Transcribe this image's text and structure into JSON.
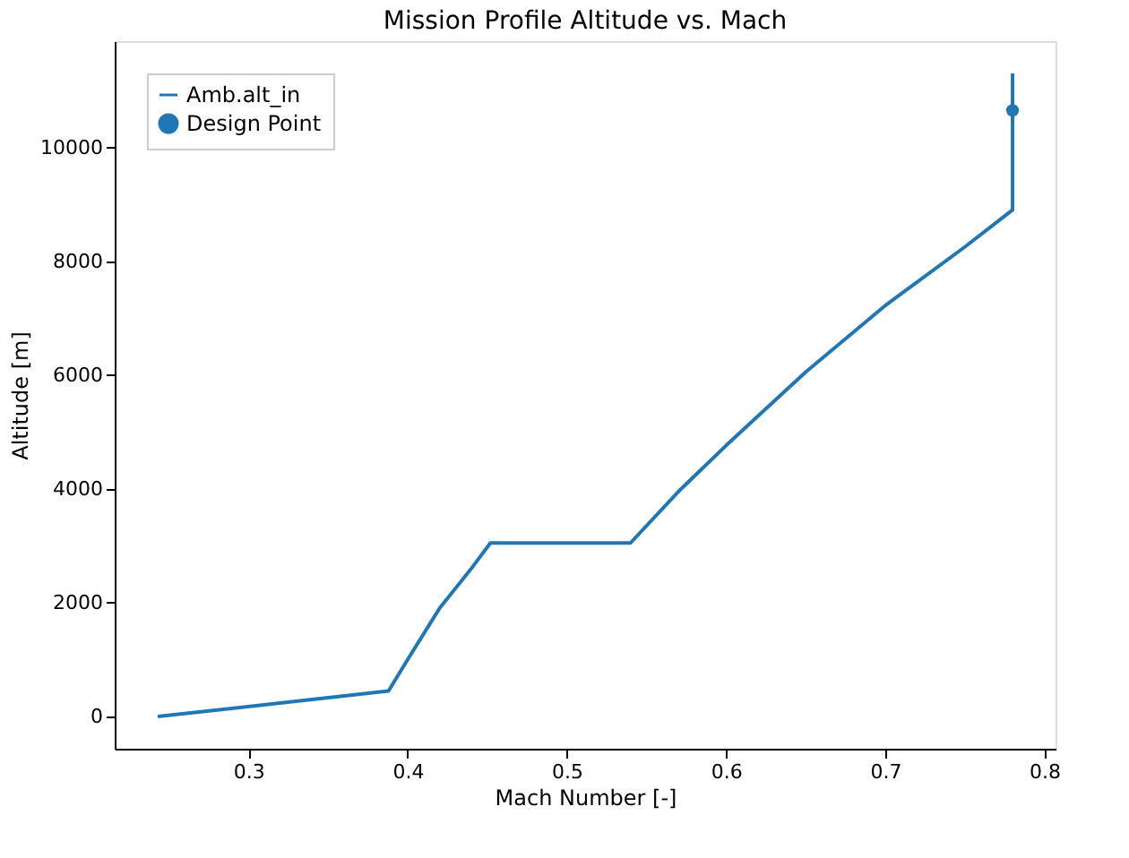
{
  "chart_data": {
    "type": "line",
    "title": "Mission Profile Altitude vs. Mach",
    "xlabel": "Mach Number [-]",
    "ylabel": "Altitude [m]",
    "xlim": [
      0.216,
      0.807
    ],
    "ylim": [
      -565,
      11865
    ],
    "xticks": [
      0.3,
      0.4,
      0.5,
      0.6,
      0.7,
      0.8
    ],
    "yticks": [
      0,
      2000,
      4000,
      6000,
      8000,
      10000
    ],
    "grid": false,
    "legend": "top left",
    "series": [
      {
        "name": "Amb.alt_in",
        "color": "#1f77b4",
        "marker": "none",
        "x": [
          0.243,
          0.388,
          0.4,
          0.42,
          0.44,
          0.452,
          0.54,
          0.57,
          0.6,
          0.65,
          0.7,
          0.75,
          0.78,
          0.78
        ],
        "values": [
          0,
          450,
          1000,
          1900,
          2600,
          3050,
          3050,
          3950,
          4760,
          6050,
          7220,
          8250,
          8900,
          11300
        ]
      },
      {
        "name": "Design Point",
        "type": "scatter",
        "color": "#1f77b4",
        "marker": "circle",
        "x": [
          0.78
        ],
        "values": [
          10650
        ]
      }
    ]
  }
}
